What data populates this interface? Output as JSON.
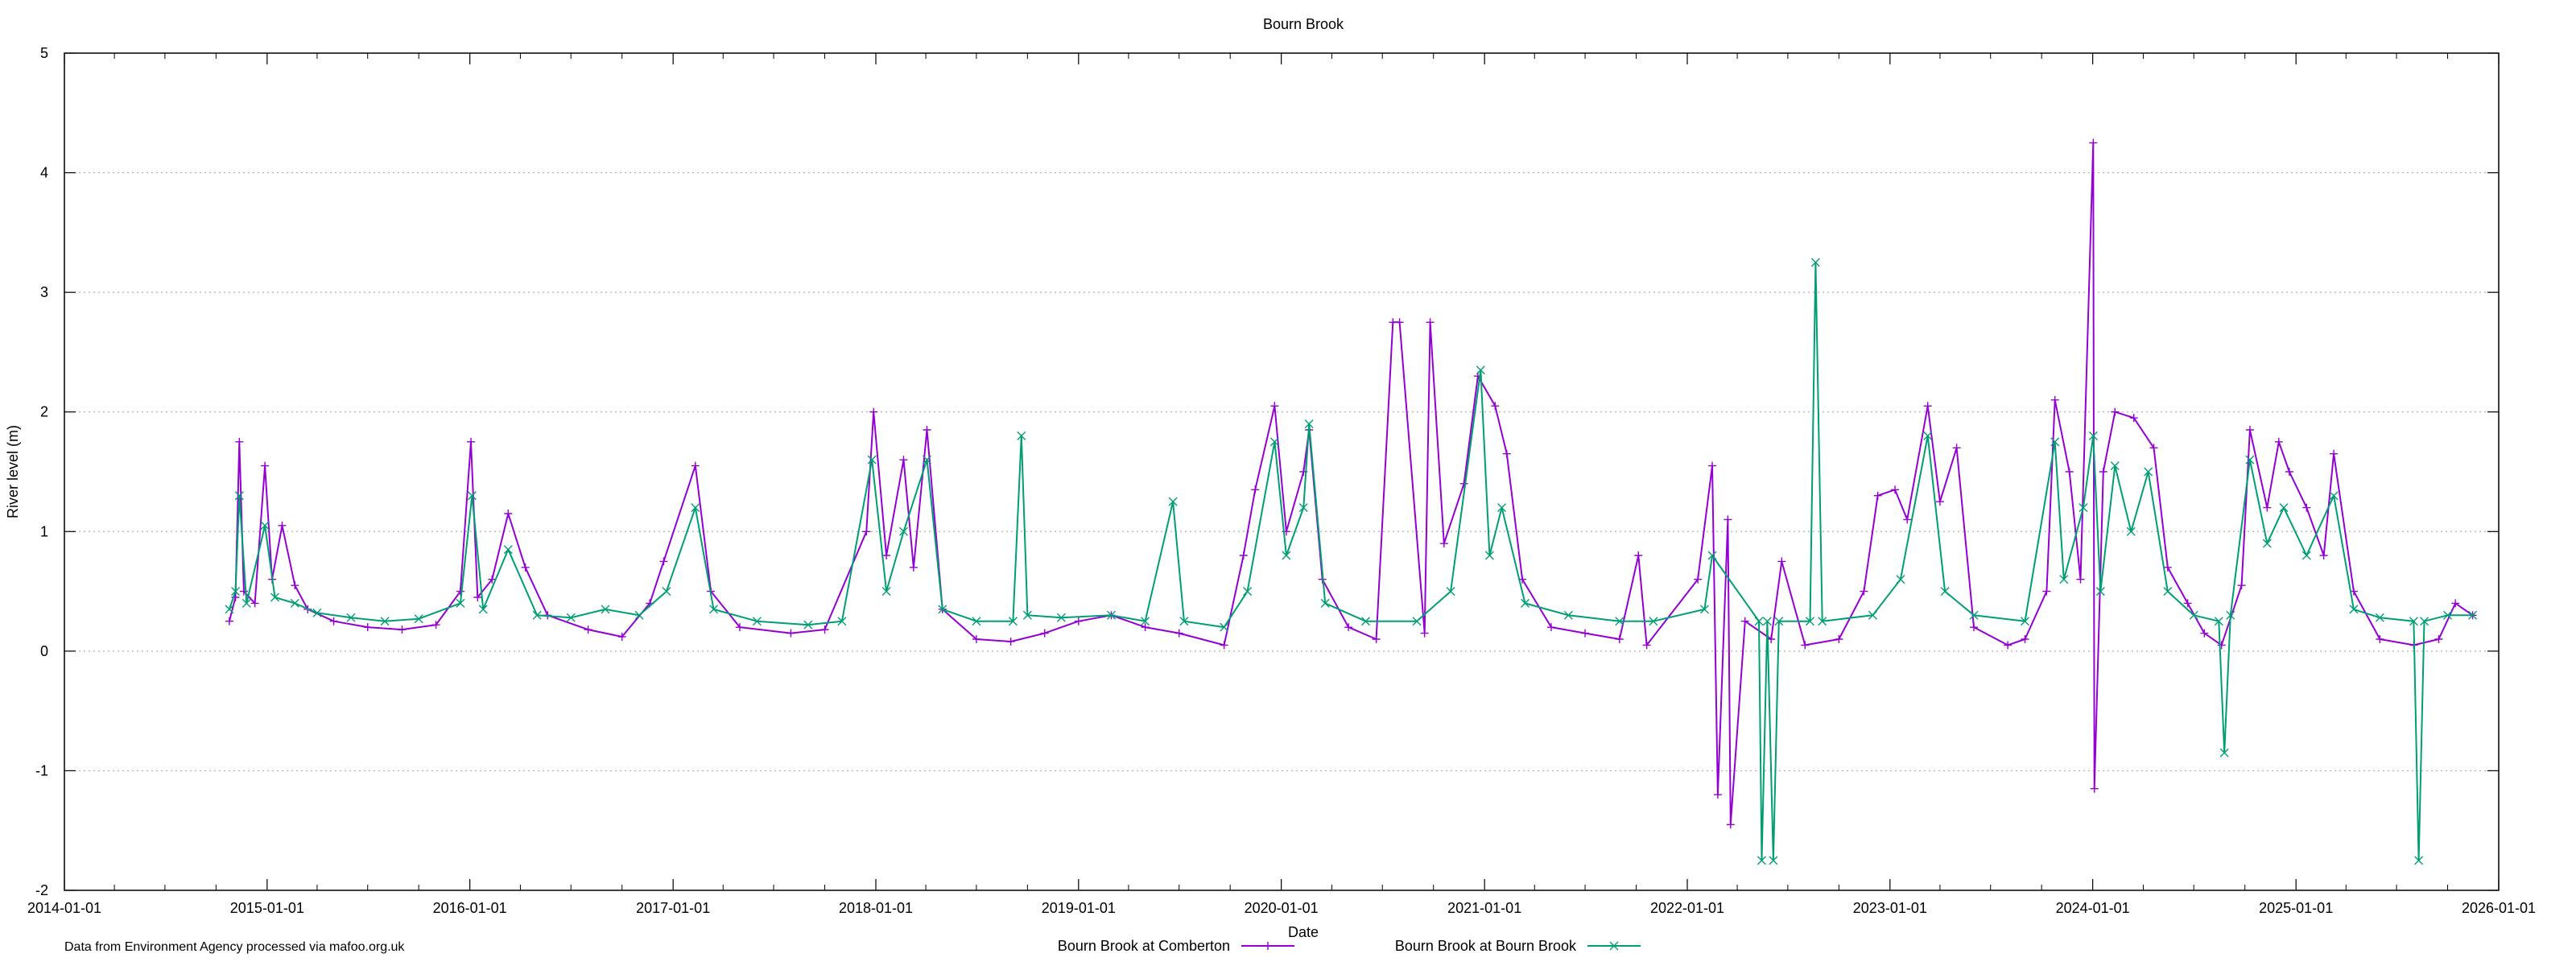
{
  "chart_data": {
    "type": "line",
    "title": "Bourn Brook",
    "xlabel": "Date",
    "ylabel": "River level (m)",
    "credit": "Data from Environment Agency processed via mafoo.org.uk",
    "xlim": [
      "2014-01-01",
      "2026-01-01"
    ],
    "ylim": [
      -2,
      5
    ],
    "x_ticks": [
      "2014-01-01",
      "2015-01-01",
      "2016-01-01",
      "2017-01-01",
      "2018-01-01",
      "2019-01-01",
      "2020-01-01",
      "2021-01-01",
      "2022-01-01",
      "2023-01-01",
      "2024-01-01",
      "2025-01-01",
      "2026-01-01"
    ],
    "y_ticks": [
      "5",
      "4",
      "3",
      "2",
      "1",
      "0",
      "-1",
      "-2"
    ],
    "grid": "horizontal dotted",
    "legend_position": "bottom-center",
    "series": [
      {
        "name": "Bourn Brook at Comberton",
        "color": "#9400d3",
        "marker": "plus",
        "points": [
          [
            "2014-10-25",
            0.25
          ],
          [
            "2014-11-05",
            0.45
          ],
          [
            "2014-11-12",
            1.75
          ],
          [
            "2014-11-20",
            0.5
          ],
          [
            "2014-12-10",
            0.4
          ],
          [
            "2014-12-28",
            1.55
          ],
          [
            "2015-01-10",
            0.6
          ],
          [
            "2015-01-28",
            1.05
          ],
          [
            "2015-02-20",
            0.55
          ],
          [
            "2015-03-15",
            0.35
          ],
          [
            "2015-05-01",
            0.25
          ],
          [
            "2015-07-01",
            0.2
          ],
          [
            "2015-09-01",
            0.18
          ],
          [
            "2015-11-01",
            0.22
          ],
          [
            "2015-12-15",
            0.5
          ],
          [
            "2016-01-03",
            1.75
          ],
          [
            "2016-01-15",
            0.45
          ],
          [
            "2016-02-10",
            0.6
          ],
          [
            "2016-03-10",
            1.15
          ],
          [
            "2016-04-10",
            0.7
          ],
          [
            "2016-05-20",
            0.3
          ],
          [
            "2016-08-01",
            0.18
          ],
          [
            "2016-10-01",
            0.12
          ],
          [
            "2016-11-20",
            0.4
          ],
          [
            "2016-12-15",
            0.75
          ],
          [
            "2017-02-10",
            1.55
          ],
          [
            "2017-03-10",
            0.5
          ],
          [
            "2017-05-01",
            0.2
          ],
          [
            "2017-08-01",
            0.15
          ],
          [
            "2017-10-01",
            0.18
          ],
          [
            "2017-12-15",
            1.0
          ],
          [
            "2017-12-28",
            2.0
          ],
          [
            "2018-01-20",
            0.8
          ],
          [
            "2018-02-20",
            1.6
          ],
          [
            "2018-03-10",
            0.7
          ],
          [
            "2018-04-03",
            1.85
          ],
          [
            "2018-05-01",
            0.35
          ],
          [
            "2018-07-01",
            0.1
          ],
          [
            "2018-09-01",
            0.08
          ],
          [
            "2018-11-01",
            0.15
          ],
          [
            "2019-01-01",
            0.25
          ],
          [
            "2019-03-01",
            0.3
          ],
          [
            "2019-05-01",
            0.2
          ],
          [
            "2019-07-01",
            0.15
          ],
          [
            "2019-09-20",
            0.05
          ],
          [
            "2019-10-25",
            0.8
          ],
          [
            "2019-11-15",
            1.35
          ],
          [
            "2019-12-20",
            2.05
          ],
          [
            "2020-01-10",
            1.0
          ],
          [
            "2020-02-10",
            1.5
          ],
          [
            "2020-02-20",
            1.85
          ],
          [
            "2020-03-15",
            0.6
          ],
          [
            "2020-05-01",
            0.2
          ],
          [
            "2020-06-20",
            0.1
          ],
          [
            "2020-07-20",
            2.75
          ],
          [
            "2020-08-01",
            2.75
          ],
          [
            "2020-09-15",
            0.15
          ],
          [
            "2020-09-25",
            2.75
          ],
          [
            "2020-10-20",
            0.9
          ],
          [
            "2020-11-25",
            1.4
          ],
          [
            "2020-12-20",
            2.3
          ],
          [
            "2021-01-20",
            2.05
          ],
          [
            "2021-02-10",
            1.65
          ],
          [
            "2021-03-10",
            0.6
          ],
          [
            "2021-05-01",
            0.2
          ],
          [
            "2021-07-01",
            0.15
          ],
          [
            "2021-09-01",
            0.1
          ],
          [
            "2021-10-05",
            0.8
          ],
          [
            "2021-10-20",
            0.05
          ],
          [
            "2022-01-20",
            0.6
          ],
          [
            "2022-02-15",
            1.55
          ],
          [
            "2022-02-25",
            -1.2
          ],
          [
            "2022-03-15",
            1.1
          ],
          [
            "2022-03-20",
            -1.45
          ],
          [
            "2022-04-15",
            0.25
          ],
          [
            "2022-06-01",
            0.1
          ],
          [
            "2022-06-20",
            0.75
          ],
          [
            "2022-08-01",
            0.05
          ],
          [
            "2022-10-01",
            0.1
          ],
          [
            "2022-11-15",
            0.5
          ],
          [
            "2022-12-10",
            1.3
          ],
          [
            "2023-01-10",
            1.35
          ],
          [
            "2023-02-01",
            1.1
          ],
          [
            "2023-03-10",
            2.05
          ],
          [
            "2023-04-01",
            1.25
          ],
          [
            "2023-05-01",
            1.7
          ],
          [
            "2023-06-01",
            0.2
          ],
          [
            "2023-08-01",
            0.05
          ],
          [
            "2023-09-01",
            0.1
          ],
          [
            "2023-10-10",
            0.5
          ],
          [
            "2023-10-25",
            2.1
          ],
          [
            "2023-11-20",
            1.5
          ],
          [
            "2023-12-10",
            0.6
          ],
          [
            "2024-01-02",
            4.25
          ],
          [
            "2024-01-04",
            -1.15
          ],
          [
            "2024-01-20",
            1.5
          ],
          [
            "2024-02-10",
            2.0
          ],
          [
            "2024-03-15",
            1.95
          ],
          [
            "2024-04-20",
            1.7
          ],
          [
            "2024-05-15",
            0.7
          ],
          [
            "2024-06-20",
            0.4
          ],
          [
            "2024-07-20",
            0.15
          ],
          [
            "2024-08-20",
            0.05
          ],
          [
            "2024-09-25",
            0.55
          ],
          [
            "2024-10-10",
            1.85
          ],
          [
            "2024-11-10",
            1.2
          ],
          [
            "2024-12-01",
            1.75
          ],
          [
            "2024-12-20",
            1.5
          ],
          [
            "2025-01-20",
            1.2
          ],
          [
            "2025-02-20",
            0.8
          ],
          [
            "2025-03-10",
            1.65
          ],
          [
            "2025-04-15",
            0.5
          ],
          [
            "2025-06-01",
            0.1
          ],
          [
            "2025-08-01",
            0.05
          ],
          [
            "2025-09-15",
            0.1
          ],
          [
            "2025-10-15",
            0.4
          ],
          [
            "2025-11-15",
            0.3
          ]
        ]
      },
      {
        "name": "Bourn Brook at Bourn Brook",
        "color": "#009e73",
        "marker": "cross",
        "points": [
          [
            "2014-10-25",
            0.35
          ],
          [
            "2014-11-05",
            0.5
          ],
          [
            "2014-11-12",
            1.3
          ],
          [
            "2014-11-25",
            0.4
          ],
          [
            "2014-12-28",
            1.05
          ],
          [
            "2015-01-15",
            0.45
          ],
          [
            "2015-02-20",
            0.4
          ],
          [
            "2015-04-01",
            0.32
          ],
          [
            "2015-06-01",
            0.28
          ],
          [
            "2015-08-01",
            0.25
          ],
          [
            "2015-10-01",
            0.27
          ],
          [
            "2015-12-15",
            0.4
          ],
          [
            "2016-01-05",
            1.3
          ],
          [
            "2016-01-25",
            0.35
          ],
          [
            "2016-03-10",
            0.85
          ],
          [
            "2016-05-01",
            0.3
          ],
          [
            "2016-07-01",
            0.28
          ],
          [
            "2016-09-01",
            0.35
          ],
          [
            "2016-11-01",
            0.3
          ],
          [
            "2016-12-20",
            0.5
          ],
          [
            "2017-02-10",
            1.2
          ],
          [
            "2017-03-15",
            0.35
          ],
          [
            "2017-06-01",
            0.25
          ],
          [
            "2017-09-01",
            0.22
          ],
          [
            "2017-11-01",
            0.25
          ],
          [
            "2017-12-25",
            1.6
          ],
          [
            "2018-01-20",
            0.5
          ],
          [
            "2018-02-20",
            1.0
          ],
          [
            "2018-04-03",
            1.6
          ],
          [
            "2018-05-01",
            0.35
          ],
          [
            "2018-07-01",
            0.25
          ],
          [
            "2018-09-05",
            0.25
          ],
          [
            "2018-09-20",
            1.8
          ],
          [
            "2018-10-01",
            0.3
          ],
          [
            "2018-12-01",
            0.28
          ],
          [
            "2019-03-01",
            0.3
          ],
          [
            "2019-05-01",
            0.25
          ],
          [
            "2019-06-20",
            1.25
          ],
          [
            "2019-07-10",
            0.25
          ],
          [
            "2019-09-20",
            0.2
          ],
          [
            "2019-11-01",
            0.5
          ],
          [
            "2019-12-20",
            1.75
          ],
          [
            "2020-01-10",
            0.8
          ],
          [
            "2020-02-10",
            1.2
          ],
          [
            "2020-02-20",
            1.9
          ],
          [
            "2020-03-20",
            0.4
          ],
          [
            "2020-06-01",
            0.25
          ],
          [
            "2020-09-01",
            0.25
          ],
          [
            "2020-11-01",
            0.5
          ],
          [
            "2020-12-25",
            2.35
          ],
          [
            "2021-01-10",
            0.8
          ],
          [
            "2021-02-01",
            1.2
          ],
          [
            "2021-03-15",
            0.4
          ],
          [
            "2021-06-01",
            0.3
          ],
          [
            "2021-09-01",
            0.25
          ],
          [
            "2021-11-01",
            0.25
          ],
          [
            "2022-02-01",
            0.35
          ],
          [
            "2022-02-15",
            0.8
          ],
          [
            "2022-05-10",
            0.25
          ],
          [
            "2022-05-15",
            -1.75
          ],
          [
            "2022-05-25",
            0.25
          ],
          [
            "2022-06-05",
            -1.75
          ],
          [
            "2022-06-15",
            0.25
          ],
          [
            "2022-08-10",
            0.25
          ],
          [
            "2022-08-20",
            3.25
          ],
          [
            "2022-09-01",
            0.25
          ],
          [
            "2022-12-01",
            0.3
          ],
          [
            "2023-01-20",
            0.6
          ],
          [
            "2023-03-10",
            1.8
          ],
          [
            "2023-04-10",
            0.5
          ],
          [
            "2023-06-01",
            0.3
          ],
          [
            "2023-09-01",
            0.25
          ],
          [
            "2023-10-25",
            1.75
          ],
          [
            "2023-11-10",
            0.6
          ],
          [
            "2023-12-15",
            1.2
          ],
          [
            "2024-01-02",
            1.8
          ],
          [
            "2024-01-15",
            0.5
          ],
          [
            "2024-02-10",
            1.55
          ],
          [
            "2024-03-10",
            1.0
          ],
          [
            "2024-04-10",
            1.5
          ],
          [
            "2024-05-15",
            0.5
          ],
          [
            "2024-07-01",
            0.3
          ],
          [
            "2024-08-15",
            0.25
          ],
          [
            "2024-08-25",
            -0.85
          ],
          [
            "2024-09-05",
            0.3
          ],
          [
            "2024-10-10",
            1.6
          ],
          [
            "2024-11-10",
            0.9
          ],
          [
            "2024-12-10",
            1.2
          ],
          [
            "2025-01-20",
            0.8
          ],
          [
            "2025-03-10",
            1.3
          ],
          [
            "2025-04-15",
            0.35
          ],
          [
            "2025-06-01",
            0.28
          ],
          [
            "2025-08-01",
            0.25
          ],
          [
            "2025-08-10",
            -1.75
          ],
          [
            "2025-08-20",
            0.25
          ],
          [
            "2025-10-01",
            0.3
          ],
          [
            "2025-11-15",
            0.3
          ]
        ]
      }
    ]
  }
}
